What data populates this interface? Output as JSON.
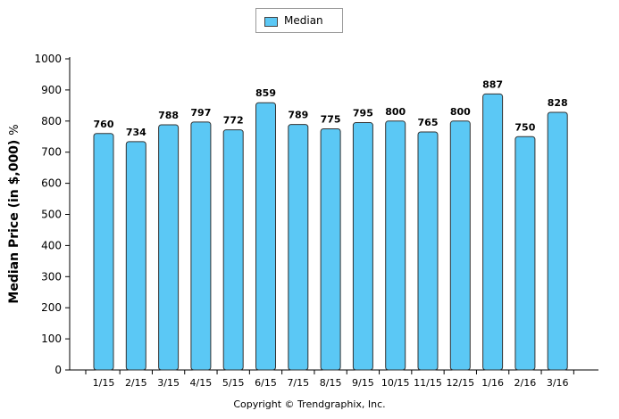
{
  "legend": {
    "label": "Median",
    "color": "#5bc8f5"
  },
  "axes": {
    "ylabel_main": "Median Price (in $,000)",
    "ylabel_unit": "%"
  },
  "footer": {
    "copyright": "Copyright © Trendgraphix, Inc."
  },
  "chart_data": {
    "type": "bar",
    "categories": [
      "1/15",
      "2/15",
      "3/15",
      "4/15",
      "5/15",
      "6/15",
      "7/15",
      "8/15",
      "9/15",
      "10/15",
      "11/15",
      "12/15",
      "1/16",
      "2/16",
      "3/16"
    ],
    "series": [
      {
        "name": "Median",
        "values": [
          760,
          734,
          788,
          797,
          772,
          859,
          789,
          775,
          795,
          800,
          765,
          800,
          887,
          750,
          828
        ],
        "color": "#5bc8f5"
      }
    ],
    "data_labels": [
      "760",
      "734",
      "788",
      "797",
      "772",
      "859",
      "789",
      "775",
      "795",
      "800",
      "765",
      "800",
      "887",
      "750",
      "828"
    ],
    "ylim": [
      0,
      1000
    ],
    "yticks": [
      0,
      100,
      200,
      300,
      400,
      500,
      600,
      700,
      800,
      900,
      1000
    ],
    "ylabel": "Median Price (in $,000) %",
    "grid": false,
    "legend_position": "top-center"
  }
}
